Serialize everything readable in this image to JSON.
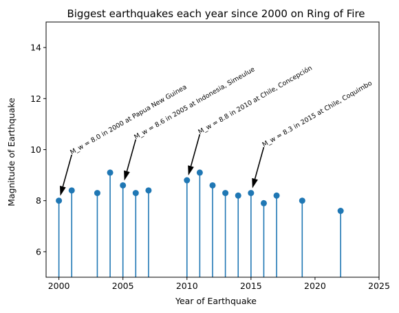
{
  "chart_data": {
    "type": "scatter",
    "subtype": "stem",
    "title": "Biggest earthquakes each year since 2000 on Ring of Fire",
    "xlabel": "Year of Earthquake",
    "ylabel": "Magnitude of Earthquake",
    "xlim": [
      1999,
      2025
    ],
    "ylim": [
      5,
      15
    ],
    "xticks": [
      2000,
      2005,
      2010,
      2015,
      2020,
      2025
    ],
    "yticks": [
      6,
      8,
      10,
      12,
      14
    ],
    "grid": false,
    "color": "#1f77b4",
    "points": [
      {
        "x": 2000,
        "y": 8.0
      },
      {
        "x": 2001,
        "y": 8.4
      },
      {
        "x": 2003,
        "y": 8.3
      },
      {
        "x": 2004,
        "y": 9.1
      },
      {
        "x": 2005,
        "y": 8.6
      },
      {
        "x": 2006,
        "y": 8.3
      },
      {
        "x": 2007,
        "y": 8.4
      },
      {
        "x": 2010,
        "y": 8.8
      },
      {
        "x": 2011,
        "y": 9.1
      },
      {
        "x": 2012,
        "y": 8.6
      },
      {
        "x": 2013,
        "y": 8.3
      },
      {
        "x": 2014,
        "y": 8.2
      },
      {
        "x": 2015,
        "y": 8.3
      },
      {
        "x": 2016,
        "y": 7.9
      },
      {
        "x": 2017,
        "y": 8.2
      },
      {
        "x": 2019,
        "y": 8.0
      },
      {
        "x": 2022,
        "y": 7.6
      }
    ],
    "annotations": [
      {
        "text": "M_w = 8.0 in 2000 at Papua New Guinea",
        "x": 2000,
        "y": 8.0,
        "text_x": 2001,
        "text_y": 9.8
      },
      {
        "text": "M_w = 8.6 in 2005 at Indonesia, Simeulue",
        "x": 2005,
        "y": 8.6,
        "text_x": 2006,
        "text_y": 10.4
      },
      {
        "text": "M_w = 8.8 in 2010 at Chile, Concepción",
        "x": 2010,
        "y": 8.8,
        "text_x": 2011,
        "text_y": 10.6
      },
      {
        "text": "M_w = 8.3 in 2015 at Chile, Coquimbo",
        "x": 2015,
        "y": 8.3,
        "text_x": 2016,
        "text_y": 10.1
      }
    ]
  }
}
